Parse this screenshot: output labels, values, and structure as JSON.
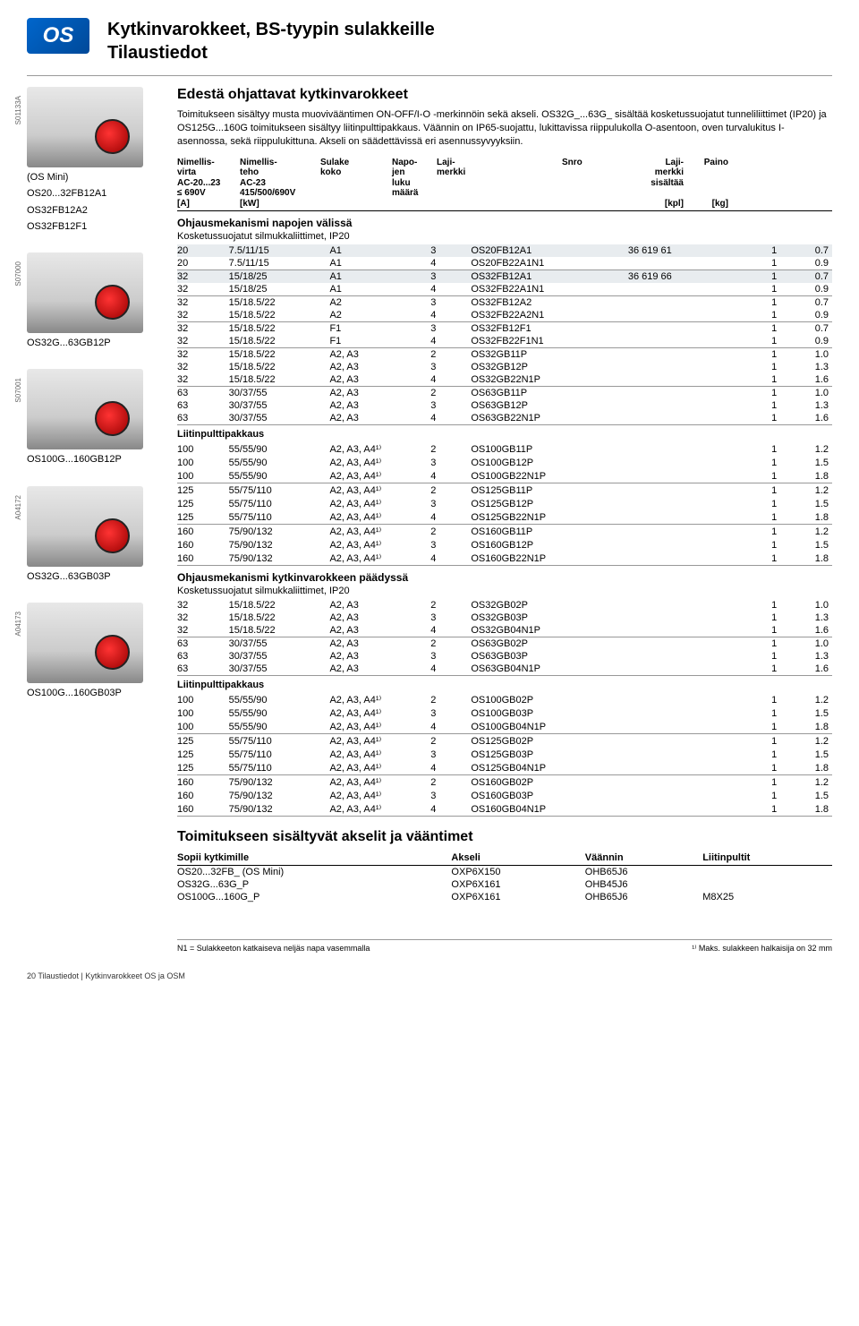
{
  "logo_text": "OS",
  "page_title_1": "Kytkinvarokkeet, BS-tyypin sulakkeille",
  "page_title_2": "Tilaustiedot",
  "left_products": [
    {
      "side": "S01133A",
      "labels": [
        "(OS Mini)",
        "OS20...32FB12A1",
        "OS32FB12A2",
        "OS32FB12F1"
      ]
    },
    {
      "side": "S07000",
      "labels": [
        "OS32G...63GB12P"
      ]
    },
    {
      "side": "S07001",
      "labels": [
        "OS100G...160GB12P"
      ]
    },
    {
      "side": "A04172",
      "labels": [
        "OS32G...63GB03P"
      ]
    },
    {
      "side": "A04173",
      "labels": [
        "OS100G...160GB03P"
      ]
    }
  ],
  "section1_title": "Edestä ohjattavat kytkinvarokkeet",
  "intro": "Toimitukseen sisältyy musta muovivääntimen ON-OFF/I-O -merkinnöin sekä akseli. OS32G_...63G_ sisältää kosketussuojatut tunneliliittimet (IP20) ja OS125G...160G toimitukseen sisältyy liitinpulttipakkaus. Väännin on IP65-suojattu, lukittavissa riippulukolla O-asentoon, oven turvalukitus I-asennossa, sekä riippulukittuna. Akseli on säädettävissä eri asennussyvyyksiin.",
  "headers": {
    "virta": "Nimellis-\nvirta\nAC-20...23\n≤ 690V\n[A]",
    "teho": "Nimellis-\nteho\nAC-23\n415/500/690V\n[kW]",
    "sulake": "Sulake\nkoko",
    "napo": "Napo-\njen\nluku\nmäärä",
    "laji": "Laji-\nmerkki",
    "snro": "Snro",
    "sis": "Laji-\nmerkki\nsisältää\n\n[kpl]",
    "paino": "Paino\n\n\n\n[kg]"
  },
  "sub1": "Ohjausmekanismi napojen välissä",
  "sub1b": "Kosketussuojatut silmukkaliittimet, IP20",
  "table1": [
    {
      "hl": true,
      "r": [
        "20",
        "7.5/11/15",
        "A1",
        "3",
        "OS20FB12A1",
        "36 619 61",
        "1",
        "0.7"
      ]
    },
    {
      "r": [
        "20",
        "7.5/11/15",
        "A1",
        "4",
        "OS20FB22A1N1",
        "",
        "1",
        "0.9"
      ],
      "sep": true
    },
    {
      "hl": true,
      "r": [
        "32",
        "15/18/25",
        "A1",
        "3",
        "OS32FB12A1",
        "36 619 66",
        "1",
        "0.7"
      ]
    },
    {
      "r": [
        "32",
        "15/18/25",
        "A1",
        "4",
        "OS32FB22A1N1",
        "",
        "1",
        "0.9"
      ],
      "sep": true
    },
    {
      "r": [
        "32",
        "15/18.5/22",
        "A2",
        "3",
        "OS32FB12A2",
        "",
        "1",
        "0.7"
      ]
    },
    {
      "r": [
        "32",
        "15/18.5/22",
        "A2",
        "4",
        "OS32FB22A2N1",
        "",
        "1",
        "0.9"
      ],
      "sep": true
    },
    {
      "r": [
        "32",
        "15/18.5/22",
        "F1",
        "3",
        "OS32FB12F1",
        "",
        "1",
        "0.7"
      ]
    },
    {
      "r": [
        "32",
        "15/18.5/22",
        "F1",
        "4",
        "OS32FB22F1N1",
        "",
        "1",
        "0.9"
      ],
      "sep": true
    },
    {
      "r": [
        "32",
        "15/18.5/22",
        "A2, A3",
        "2",
        "OS32GB11P",
        "",
        "1",
        "1.0"
      ]
    },
    {
      "r": [
        "32",
        "15/18.5/22",
        "A2, A3",
        "3",
        "OS32GB12P",
        "",
        "1",
        "1.3"
      ]
    },
    {
      "r": [
        "32",
        "15/18.5/22",
        "A2, A3",
        "4",
        "OS32GB22N1P",
        "",
        "1",
        "1.6"
      ],
      "sep": true
    },
    {
      "r": [
        "63",
        "30/37/55",
        "A2, A3",
        "2",
        "OS63GB11P",
        "",
        "1",
        "1.0"
      ]
    },
    {
      "r": [
        "63",
        "30/37/55",
        "A2, A3",
        "3",
        "OS63GB12P",
        "",
        "1",
        "1.3"
      ]
    },
    {
      "r": [
        "63",
        "30/37/55",
        "A2, A3",
        "4",
        "OS63GB22N1P",
        "",
        "1",
        "1.6"
      ],
      "sep": true
    }
  ],
  "sub_liitin": "Liitinpulttipakkaus",
  "table1b": [
    {
      "r": [
        "100",
        "55/55/90",
        "A2, A3, A4¹⁾",
        "2",
        "OS100GB11P",
        "",
        "1",
        "1.2"
      ]
    },
    {
      "r": [
        "100",
        "55/55/90",
        "A2, A3, A4¹⁾",
        "3",
        "OS100GB12P",
        "",
        "1",
        "1.5"
      ]
    },
    {
      "r": [
        "100",
        "55/55/90",
        "A2, A3, A4¹⁾",
        "4",
        "OS100GB22N1P",
        "",
        "1",
        "1.8"
      ],
      "sep": true
    },
    {
      "r": [
        "125",
        "55/75/110",
        "A2, A3, A4¹⁾",
        "2",
        "OS125GB11P",
        "",
        "1",
        "1.2"
      ]
    },
    {
      "r": [
        "125",
        "55/75/110",
        "A2, A3, A4¹⁾",
        "3",
        "OS125GB12P",
        "",
        "1",
        "1.5"
      ]
    },
    {
      "r": [
        "125",
        "55/75/110",
        "A2, A3, A4¹⁾",
        "4",
        "OS125GB22N1P",
        "",
        "1",
        "1.8"
      ],
      "sep": true
    },
    {
      "r": [
        "160",
        "75/90/132",
        "A2, A3, A4¹⁾",
        "2",
        "OS160GB11P",
        "",
        "1",
        "1.2"
      ]
    },
    {
      "r": [
        "160",
        "75/90/132",
        "A2, A3, A4¹⁾",
        "3",
        "OS160GB12P",
        "",
        "1",
        "1.5"
      ]
    },
    {
      "r": [
        "160",
        "75/90/132",
        "A2, A3, A4¹⁾",
        "4",
        "OS160GB22N1P",
        "",
        "1",
        "1.8"
      ],
      "sep": true
    }
  ],
  "sub2": "Ohjausmekanismi kytkinvarokkeen päädyssä",
  "sub2b": "Kosketussuojatut silmukkaliittimet, IP20",
  "table2": [
    {
      "r": [
        "32",
        "15/18.5/22",
        "A2, A3",
        "2",
        "OS32GB02P",
        "",
        "1",
        "1.0"
      ]
    },
    {
      "r": [
        "32",
        "15/18.5/22",
        "A2, A3",
        "3",
        "OS32GB03P",
        "",
        "1",
        "1.3"
      ]
    },
    {
      "r": [
        "32",
        "15/18.5/22",
        "A2, A3",
        "4",
        "OS32GB04N1P",
        "",
        "1",
        "1.6"
      ],
      "sep": true
    },
    {
      "r": [
        "63",
        "30/37/55",
        "A2, A3",
        "2",
        "OS63GB02P",
        "",
        "1",
        "1.0"
      ]
    },
    {
      "r": [
        "63",
        "30/37/55",
        "A2, A3",
        "3",
        "OS63GB03P",
        "",
        "1",
        "1.3"
      ]
    },
    {
      "r": [
        "63",
        "30/37/55",
        "A2, A3",
        "4",
        "OS63GB04N1P",
        "",
        "1",
        "1.6"
      ],
      "sep": true
    }
  ],
  "table2b": [
    {
      "r": [
        "100",
        "55/55/90",
        "A2, A3, A4¹⁾",
        "2",
        "OS100GB02P",
        "",
        "1",
        "1.2"
      ]
    },
    {
      "r": [
        "100",
        "55/55/90",
        "A2, A3, A4¹⁾",
        "3",
        "OS100GB03P",
        "",
        "1",
        "1.5"
      ]
    },
    {
      "r": [
        "100",
        "55/55/90",
        "A2, A3, A4¹⁾",
        "4",
        "OS100GB04N1P",
        "",
        "1",
        "1.8"
      ],
      "sep": true
    },
    {
      "r": [
        "125",
        "55/75/110",
        "A2, A3, A4¹⁾",
        "2",
        "OS125GB02P",
        "",
        "1",
        "1.2"
      ]
    },
    {
      "r": [
        "125",
        "55/75/110",
        "A2, A3, A4¹⁾",
        "3",
        "OS125GB03P",
        "",
        "1",
        "1.5"
      ]
    },
    {
      "r": [
        "125",
        "55/75/110",
        "A2, A3, A4¹⁾",
        "4",
        "OS125GB04N1P",
        "",
        "1",
        "1.8"
      ],
      "sep": true
    },
    {
      "r": [
        "160",
        "75/90/132",
        "A2, A3, A4¹⁾",
        "2",
        "OS160GB02P",
        "",
        "1",
        "1.2"
      ]
    },
    {
      "r": [
        "160",
        "75/90/132",
        "A2, A3, A4¹⁾",
        "3",
        "OS160GB03P",
        "",
        "1",
        "1.5"
      ]
    },
    {
      "r": [
        "160",
        "75/90/132",
        "A2, A3, A4¹⁾",
        "4",
        "OS160GB04N1P",
        "",
        "1",
        "1.8"
      ],
      "sep": true
    }
  ],
  "section2_title": "Toimitukseen sisältyvät akselit ja vääntimet",
  "axle_headers": [
    "Sopii kytkimille",
    "Akseli",
    "Väännin",
    "Liitinpultit"
  ],
  "axle_rows": [
    [
      "OS20...32FB_ (OS Mini)",
      "OXP6X150",
      "OHB65J6",
      ""
    ],
    [
      "OS32G...63G_P",
      "OXP6X161",
      "OHB45J6",
      ""
    ],
    [
      "OS100G...160G_P",
      "OXP6X161",
      "OHB65J6",
      "M8X25"
    ]
  ],
  "footnote_left": "N1 = Sulakkeeton katkaiseva neljäs napa vasemmalla",
  "footnote_right": "¹⁾ Maks. sulakkeen halkaisija on 32 mm",
  "page_footer": "20  Tilaustiedot | Kytkinvarokkeet OS ja OSM"
}
